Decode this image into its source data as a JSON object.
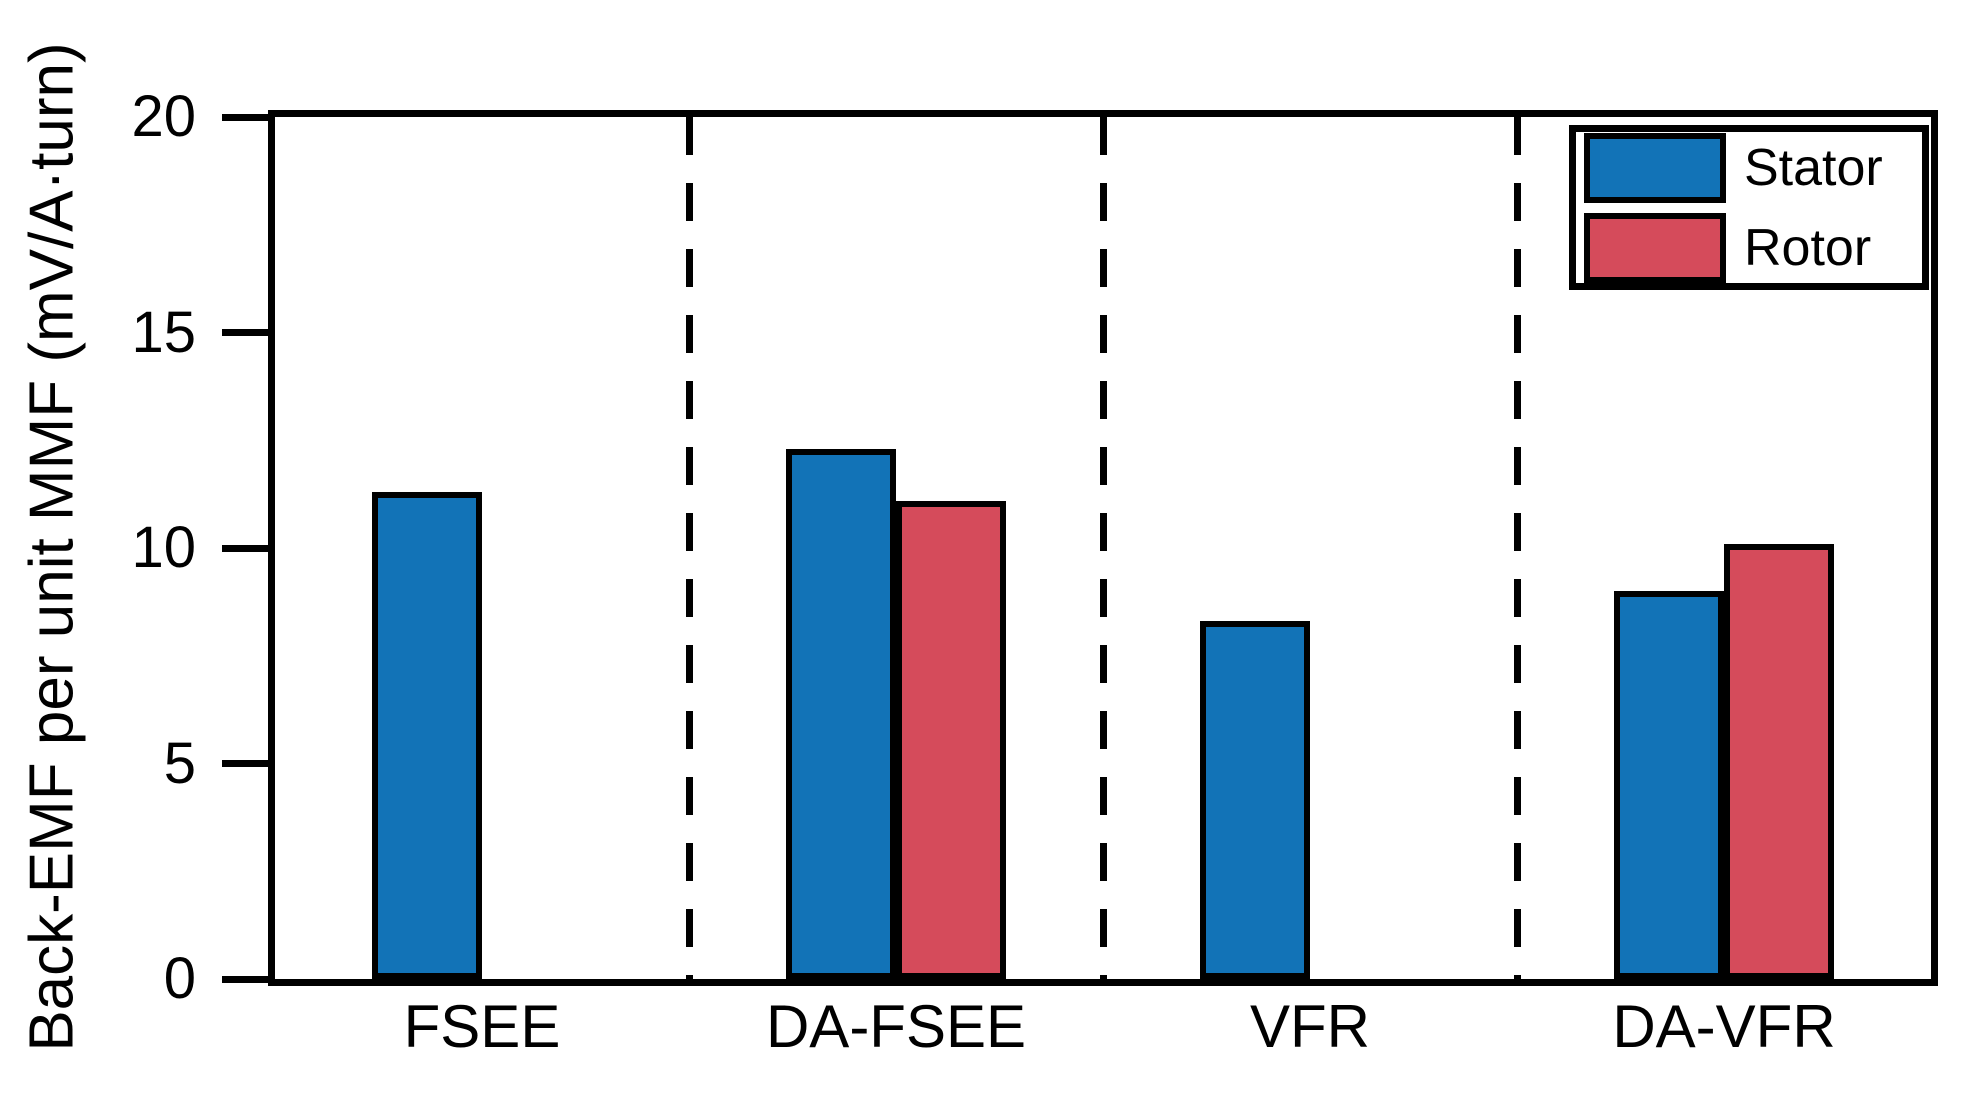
{
  "chart_data": {
    "type": "bar",
    "title": "",
    "ylabel": "Back-EMF per unit MMF (mV/A·turn)",
    "xlabel": "",
    "ylim": [
      0,
      20
    ],
    "yticks": [
      0,
      5,
      10,
      15,
      20
    ],
    "categories": [
      "FSEE",
      "DA-FSEE",
      "VFR",
      "DA-VFR"
    ],
    "series": [
      {
        "name": "Stator",
        "color": "#1273b7",
        "values": [
          11.3,
          12.3,
          8.3,
          9.0
        ]
      },
      {
        "name": "Rotor",
        "color": "#d54b5b",
        "values": [
          null,
          11.1,
          null,
          10.1
        ]
      }
    ],
    "legend": {
      "position": "top-right",
      "entries": [
        "Stator",
        "Rotor"
      ]
    },
    "grid": false,
    "category_separator_style": "dashed",
    "bar_edge_color": "#000000",
    "frame_color": "#000000"
  }
}
